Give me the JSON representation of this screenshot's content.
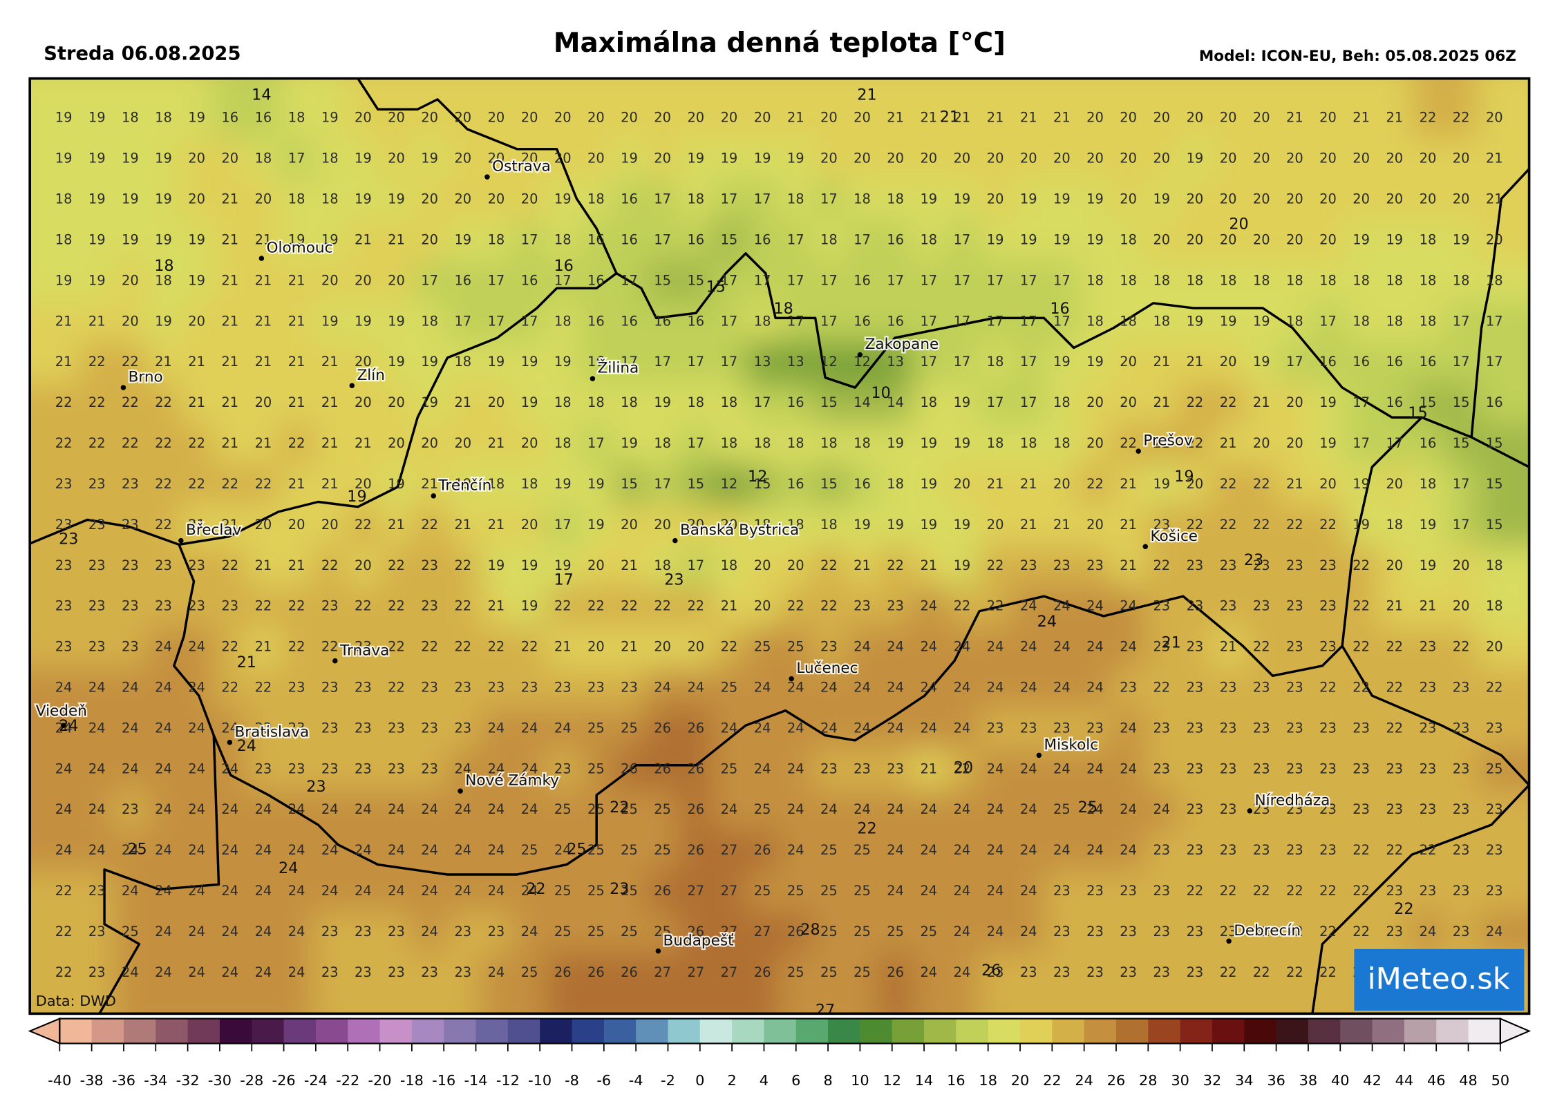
{
  "header": {
    "date": "Streda 06.08.2025",
    "title": "Maximálna denná teplota [°C]",
    "model": "Model: ICON-EU, Beh: 05.08.2025 06Z"
  },
  "map": {
    "grid": [
      [
        19,
        19,
        18,
        18,
        19,
        16,
        16,
        18,
        19,
        20,
        20,
        20,
        20,
        20,
        20,
        20,
        20,
        20,
        20,
        20,
        20,
        20,
        21,
        20,
        20,
        21,
        21,
        21,
        21,
        21,
        21,
        20,
        20,
        20,
        20,
        20,
        20,
        21,
        20,
        21,
        21,
        22,
        22,
        20
      ],
      [
        19,
        19,
        19,
        19,
        20,
        20,
        18,
        17,
        18,
        19,
        20,
        19,
        20,
        20,
        20,
        20,
        20,
        19,
        20,
        19,
        19,
        19,
        19,
        20,
        20,
        20,
        20,
        20,
        20,
        20,
        20,
        20,
        20,
        20,
        19,
        20,
        20,
        20,
        20,
        20,
        20,
        20,
        20,
        21
      ],
      [
        18,
        19,
        19,
        19,
        20,
        21,
        20,
        18,
        18,
        19,
        19,
        20,
        20,
        20,
        20,
        19,
        18,
        16,
        17,
        18,
        17,
        17,
        18,
        17,
        18,
        18,
        19,
        19,
        20,
        19,
        19,
        19,
        20,
        19,
        20,
        20,
        20,
        20,
        20,
        20,
        20,
        20,
        20,
        21
      ],
      [
        18,
        19,
        19,
        19,
        19,
        21,
        21,
        19,
        19,
        21,
        21,
        20,
        19,
        18,
        17,
        18,
        16,
        16,
        17,
        16,
        15,
        16,
        17,
        18,
        17,
        16,
        18,
        17,
        19,
        19,
        19,
        19,
        18,
        20,
        20,
        20,
        20,
        20,
        20,
        19,
        19,
        18,
        19,
        20
      ],
      [
        19,
        19,
        20,
        18,
        19,
        21,
        21,
        21,
        20,
        20,
        20,
        17,
        16,
        17,
        16,
        17,
        16,
        17,
        15,
        15,
        17,
        17,
        17,
        17,
        16,
        17,
        17,
        17,
        17,
        17,
        17,
        18,
        18,
        18,
        18,
        18,
        18,
        18,
        18,
        18,
        18,
        18,
        18,
        18
      ],
      [
        21,
        21,
        20,
        19,
        20,
        21,
        21,
        21,
        19,
        19,
        19,
        18,
        17,
        17,
        17,
        18,
        16,
        16,
        16,
        16,
        17,
        18,
        17,
        17,
        16,
        16,
        17,
        17,
        17,
        17,
        17,
        18,
        18,
        18,
        19,
        19,
        19,
        18,
        17,
        18,
        18,
        18,
        17,
        17
      ],
      [
        21,
        22,
        22,
        21,
        21,
        21,
        21,
        21,
        21,
        20,
        19,
        19,
        18,
        19,
        19,
        19,
        16,
        17,
        17,
        17,
        17,
        13,
        13,
        12,
        12,
        13,
        17,
        17,
        18,
        17,
        19,
        19,
        20,
        21,
        21,
        20,
        19,
        17,
        16,
        16,
        16,
        16,
        17,
        17
      ],
      [
        22,
        22,
        22,
        22,
        21,
        21,
        20,
        21,
        21,
        20,
        20,
        19,
        21,
        20,
        19,
        18,
        18,
        18,
        19,
        18,
        18,
        17,
        16,
        15,
        14,
        14,
        18,
        19,
        17,
        17,
        18,
        20,
        20,
        21,
        22,
        22,
        21,
        20,
        19,
        17,
        16,
        15,
        15,
        16
      ],
      [
        22,
        22,
        22,
        22,
        22,
        21,
        21,
        22,
        21,
        21,
        20,
        20,
        20,
        21,
        20,
        18,
        17,
        19,
        18,
        17,
        18,
        18,
        18,
        18,
        18,
        19,
        19,
        19,
        18,
        18,
        18,
        20,
        22,
        22,
        22,
        21,
        20,
        20,
        19,
        17,
        17,
        16,
        15,
        15
      ],
      [
        23,
        23,
        23,
        22,
        22,
        22,
        22,
        21,
        21,
        20,
        19,
        21,
        19,
        18,
        18,
        19,
        19,
        15,
        17,
        15,
        12,
        15,
        16,
        15,
        16,
        18,
        19,
        20,
        21,
        21,
        20,
        22,
        21,
        19,
        20,
        22,
        22,
        21,
        20,
        19,
        20,
        18,
        17,
        15
      ],
      [
        23,
        23,
        23,
        22,
        21,
        21,
        20,
        20,
        20,
        22,
        21,
        22,
        21,
        21,
        20,
        17,
        19,
        20,
        20,
        20,
        20,
        18,
        18,
        18,
        19,
        19,
        19,
        19,
        20,
        21,
        21,
        20,
        21,
        23,
        22,
        22,
        22,
        22,
        22,
        19,
        18,
        19,
        17,
        15
      ],
      [
        23,
        23,
        23,
        23,
        23,
        22,
        21,
        21,
        22,
        20,
        22,
        23,
        22,
        19,
        19,
        19,
        20,
        21,
        18,
        17,
        18,
        20,
        20,
        22,
        21,
        22,
        21,
        19,
        22,
        23,
        23,
        23,
        21,
        22,
        23,
        23,
        23,
        23,
        23,
        22,
        20,
        19,
        20,
        18
      ],
      [
        23,
        23,
        23,
        23,
        23,
        23,
        22,
        22,
        23,
        22,
        22,
        23,
        22,
        21,
        19,
        22,
        22,
        22,
        22,
        22,
        21,
        20,
        22,
        22,
        23,
        23,
        24,
        22,
        22,
        24,
        24,
        24,
        24,
        23,
        23,
        23,
        23,
        23,
        23,
        22,
        21,
        21,
        20,
        18
      ],
      [
        23,
        23,
        23,
        24,
        24,
        22,
        21,
        22,
        22,
        23,
        22,
        22,
        22,
        22,
        22,
        21,
        20,
        21,
        20,
        20,
        22,
        25,
        25,
        23,
        24,
        24,
        24,
        24,
        24,
        24,
        24,
        24,
        24,
        23,
        23,
        21,
        22,
        23,
        23,
        22,
        22,
        23,
        22,
        20
      ],
      [
        24,
        24,
        24,
        24,
        24,
        22,
        22,
        23,
        23,
        23,
        22,
        23,
        23,
        23,
        23,
        23,
        23,
        23,
        24,
        24,
        25,
        24,
        24,
        24,
        24,
        24,
        24,
        24,
        24,
        24,
        24,
        24,
        23,
        22,
        23,
        23,
        23,
        23,
        22,
        22,
        22,
        23,
        23,
        22
      ],
      [
        24,
        24,
        24,
        24,
        24,
        24,
        23,
        23,
        23,
        23,
        23,
        23,
        23,
        24,
        24,
        24,
        25,
        25,
        26,
        26,
        24,
        24,
        24,
        24,
        24,
        24,
        24,
        24,
        23,
        23,
        23,
        23,
        24,
        23,
        23,
        23,
        23,
        23,
        23,
        23,
        22,
        23,
        23,
        23
      ],
      [
        24,
        24,
        24,
        24,
        24,
        24,
        23,
        23,
        23,
        23,
        23,
        23,
        24,
        24,
        24,
        23,
        25,
        26,
        26,
        26,
        25,
        24,
        24,
        23,
        23,
        23,
        21,
        22,
        24,
        24,
        24,
        24,
        24,
        23,
        23,
        23,
        23,
        23,
        23,
        23,
        23,
        23,
        23,
        25
      ],
      [
        24,
        24,
        23,
        24,
        24,
        24,
        24,
        24,
        24,
        24,
        24,
        24,
        24,
        24,
        24,
        25,
        25,
        25,
        25,
        26,
        24,
        25,
        24,
        24,
        24,
        24,
        24,
        24,
        24,
        24,
        25,
        24,
        24,
        24,
        23,
        23,
        23,
        23,
        23,
        23,
        23,
        23,
        23,
        23
      ],
      [
        24,
        24,
        24,
        24,
        24,
        24,
        24,
        24,
        24,
        24,
        24,
        24,
        24,
        24,
        25,
        24,
        25,
        25,
        25,
        26,
        27,
        26,
        24,
        25,
        25,
        24,
        24,
        24,
        24,
        24,
        24,
        24,
        24,
        23,
        23,
        23,
        23,
        23,
        23,
        22,
        22,
        22,
        23,
        23
      ],
      [
        22,
        23,
        24,
        24,
        24,
        24,
        24,
        24,
        24,
        24,
        24,
        24,
        24,
        24,
        24,
        25,
        25,
        25,
        26,
        27,
        27,
        25,
        25,
        25,
        25,
        24,
        24,
        24,
        24,
        24,
        23,
        23,
        23,
        23,
        22,
        22,
        22,
        22,
        22,
        22,
        23,
        23,
        23,
        23
      ],
      [
        22,
        23,
        25,
        24,
        24,
        24,
        24,
        24,
        23,
        23,
        23,
        24,
        23,
        23,
        24,
        25,
        25,
        25,
        25,
        26,
        27,
        27,
        26,
        25,
        25,
        25,
        25,
        24,
        24,
        24,
        23,
        23,
        23,
        23,
        23,
        23,
        22,
        22,
        22,
        22,
        23,
        24,
        23,
        24
      ],
      [
        22,
        23,
        24,
        24,
        24,
        24,
        24,
        24,
        23,
        23,
        23,
        23,
        23,
        24,
        25,
        26,
        26,
        26,
        27,
        27,
        27,
        26,
        25,
        25,
        25,
        26,
        24,
        24,
        23,
        23,
        23,
        23,
        23,
        23,
        23,
        22,
        22,
        22,
        22,
        22,
        22,
        22,
        22,
        22
      ]
    ],
    "extremes": [
      14,
      21,
      21,
      20,
      18,
      16,
      15,
      18,
      16,
      10,
      15,
      12,
      19,
      19,
      23,
      17,
      23,
      23,
      24,
      21,
      21,
      24,
      24,
      20,
      23,
      22,
      25,
      22,
      25,
      25,
      24,
      22,
      23,
      22,
      28,
      26,
      27
    ],
    "cities": [
      "Ostrava",
      "Olomouc",
      "Brno",
      "Zlín",
      "Žilina",
      "Zakopane",
      "Prešov",
      "Trenčín",
      "Břeclav",
      "Banská Bystrica",
      "Košice",
      "Trnava",
      "Lučenec",
      "Viedeň",
      "Bratislava",
      "Miskolc",
      "Nové Zámky",
      "Níredháza",
      "Budapešť",
      "Debrecín"
    ],
    "credit": "Data: DWD",
    "logo": "iMeteo.sk"
  },
  "colorbar": {
    "ticks": [
      -40,
      -38,
      -36,
      -34,
      -32,
      -30,
      -28,
      -26,
      -24,
      -22,
      -20,
      -18,
      -16,
      -14,
      -12,
      -10,
      -8,
      -6,
      -4,
      -2,
      0,
      2,
      4,
      6,
      8,
      10,
      12,
      14,
      16,
      18,
      20,
      22,
      24,
      26,
      28,
      30,
      32,
      34,
      36,
      38,
      40,
      42,
      44,
      46,
      48,
      50
    ],
    "colors": [
      "#f0b898",
      "#d49888",
      "#b07a78",
      "#8e5868",
      "#703a58",
      "#3a0a3a",
      "#4a1a4a",
      "#6a3a7a",
      "#8a4a90",
      "#b070b8",
      "#c890c8",
      "#a888c0",
      "#8878b0",
      "#6a64a0",
      "#505090",
      "#1a2060",
      "#2a4088",
      "#3a60a0",
      "#6090b8",
      "#90c8d0",
      "#c8e8e0",
      "#a8d8c0",
      "#80c098",
      "#58a870",
      "#3a8848",
      "#4e8a30",
      "#78a038",
      "#a0b848",
      "#c0d058",
      "#d8dc60",
      "#e0d058",
      "#d4b048",
      "#c49040",
      "#b07030",
      "#9a4420",
      "#842418",
      "#6a1010",
      "#4a0808",
      "#3a1418",
      "#583040",
      "#705060",
      "#907080",
      "#b8a0a8",
      "#d8c8d0",
      "#f0ecf0"
    ]
  }
}
